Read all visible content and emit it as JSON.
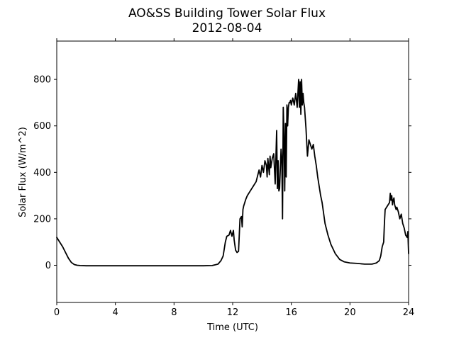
{
  "chart_data": {
    "type": "line",
    "title": "AO&SS Building Tower Solar Flux",
    "subtitle": "2012-08-04",
    "xlabel": "Time (UTC)",
    "ylabel": "Solar Flux (W/m^2)",
    "xlim": [
      0,
      24
    ],
    "ylim": [
      -160,
      965
    ],
    "xticks": [
      0,
      4,
      8,
      12,
      16,
      20,
      24
    ],
    "xtick_labels": [
      "0",
      "4",
      "8",
      "12",
      "16",
      "20",
      "24"
    ],
    "yticks": [
      0,
      200,
      400,
      600,
      800
    ],
    "ytick_labels": [
      "0",
      "200",
      "400",
      "600",
      "800"
    ],
    "grid": false,
    "series": [
      {
        "color": "#000000",
        "x": [
          0,
          0.2,
          0.4,
          0.6,
          0.8,
          1.0,
          1.2,
          1.4,
          1.6,
          2,
          3,
          4,
          5,
          6,
          7,
          8,
          9,
          10,
          10.6,
          11.0,
          11.2,
          11.35,
          11.5,
          11.6,
          11.75,
          11.85,
          11.95,
          12.05,
          12.1,
          12.2,
          12.3,
          12.4,
          12.5,
          12.6,
          12.65,
          12.7,
          12.75,
          12.8,
          12.85,
          12.9,
          13.0,
          13.2,
          13.4,
          13.6,
          13.8,
          13.9,
          14.0,
          14.1,
          14.2,
          14.3,
          14.35,
          14.4,
          14.5,
          14.55,
          14.6,
          14.7,
          14.8,
          14.9,
          15.0,
          15.05,
          15.1,
          15.15,
          15.2,
          15.3,
          15.35,
          15.4,
          15.45,
          15.5,
          15.55,
          15.6,
          15.65,
          15.7,
          15.75,
          15.8,
          15.85,
          15.9,
          15.95,
          16.0,
          16.1,
          16.2,
          16.3,
          16.4,
          16.5,
          16.55,
          16.6,
          16.65,
          16.7,
          16.75,
          16.8,
          16.85,
          16.9,
          17.0,
          17.1,
          17.2,
          17.3,
          17.4,
          17.5,
          17.6,
          17.7,
          17.8,
          17.9,
          18.0,
          18.1,
          18.3,
          18.5,
          18.7,
          19.0,
          19.3,
          19.6,
          20.0,
          20.5,
          21.0,
          21.5,
          21.8,
          22.0,
          22.1,
          22.2,
          22.3,
          22.35,
          22.4,
          22.5,
          22.6,
          22.7,
          22.75,
          22.8,
          22.85,
          22.9,
          22.95,
          23.0,
          23.05,
          23.1,
          23.15,
          23.2,
          23.3,
          23.4,
          23.5,
          23.6,
          23.7,
          23.8,
          23.9,
          23.95,
          24.0
        ],
        "values": [
          120,
          100,
          80,
          55,
          30,
          12,
          3,
          0,
          -1,
          -2,
          -2,
          -2,
          -2,
          -2,
          -2,
          -2,
          -2,
          -2,
          -1,
          5,
          20,
          40,
          100,
          125,
          130,
          150,
          125,
          150,
          110,
          65,
          55,
          60,
          200,
          210,
          165,
          240,
          255,
          265,
          275,
          285,
          300,
          320,
          340,
          360,
          410,
          380,
          430,
          400,
          450,
          430,
          380,
          460,
          390,
          470,
          420,
          460,
          480,
          350,
          580,
          330,
          450,
          320,
          330,
          500,
          460,
          200,
          680,
          560,
          320,
          610,
          380,
          690,
          600,
          680,
          700,
          700,
          710,
          690,
          720,
          690,
          740,
          680,
          800,
          680,
          790,
          650,
          800,
          690,
          740,
          700,
          680,
          590,
          470,
          540,
          520,
          500,
          520,
          470,
          430,
          380,
          340,
          300,
          270,
          180,
          130,
          90,
          50,
          25,
          15,
          10,
          8,
          5,
          5,
          10,
          20,
          40,
          80,
          100,
          180,
          240,
          250,
          260,
          270,
          310,
          280,
          300,
          260,
          280,
          290,
          260,
          250,
          240,
          250,
          230,
          200,
          220,
          180,
          160,
          130,
          120,
          145,
          50
        ]
      }
    ]
  }
}
